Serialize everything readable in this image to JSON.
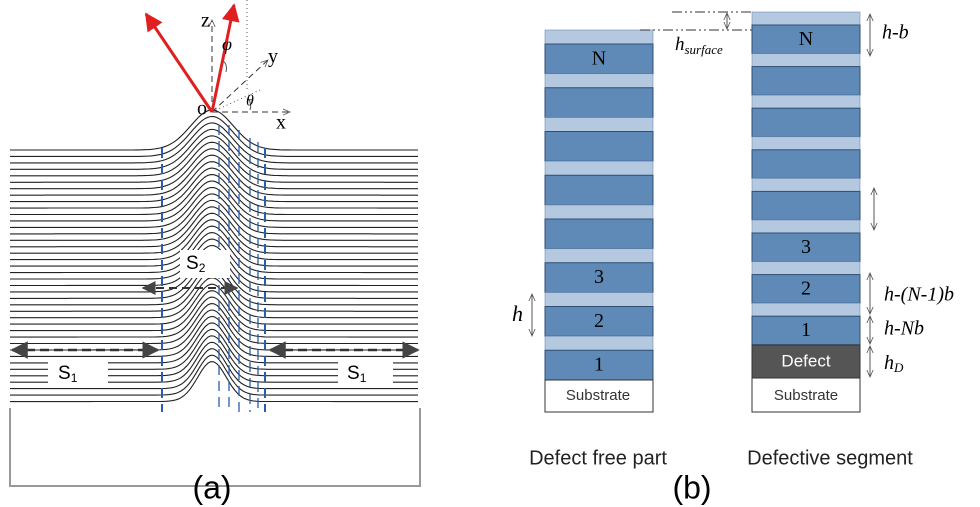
{
  "panel_a": {
    "axes": {
      "z": "z",
      "phi": "φ",
      "y": "y",
      "origin": "o",
      "theta": "θ",
      "x": "x"
    },
    "s2": {
      "base": "S",
      "sub": "2"
    },
    "s1_left": {
      "base": "S",
      "sub": "1"
    },
    "s1_right": {
      "base": "S",
      "sub": "1"
    },
    "caption": "(a)"
  },
  "panel_b": {
    "defect_free": {
      "layers": [
        "N",
        "3",
        "2",
        "1"
      ],
      "substrate": "Substrate",
      "caption": "Defect free part"
    },
    "defective": {
      "layers": [
        "N",
        "3",
        "2",
        "1"
      ],
      "defect": "Defect",
      "substrate": "Substrate",
      "caption": "Defective segment"
    },
    "labels": {
      "h": "h",
      "h_b": "h-b",
      "h_surface": {
        "base": "h",
        "sub": "surface"
      },
      "h_n1b": "h-(N-1)b",
      "h_nb": "h-Nb",
      "h_d": {
        "base": "h",
        "sub": "D"
      }
    },
    "caption": "(b)"
  }
}
